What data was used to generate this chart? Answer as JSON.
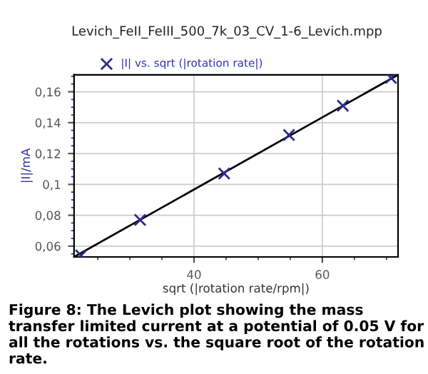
{
  "chart_data": {
    "type": "line",
    "title": "Levich_FeII_FeIII_500_7k_03_CV_1-6_Levich.mpp",
    "xlabel": "sqrt (|rotation rate/rpm|)",
    "ylabel": "|I|/mA",
    "series": [
      {
        "name": "|I| vs. sqrt (|rotation rate|)",
        "type": "scatter",
        "marker": "cross",
        "color": "#2b2b8c",
        "x": [
          22.4,
          31.6,
          44.7,
          54.8,
          63.2,
          70.7
        ],
        "values": [
          0.054,
          0.077,
          0.107,
          0.132,
          0.151,
          0.169
        ]
      },
      {
        "color": "#000000",
        "x": [
          21.3,
          71.8
        ],
        "values": [
          0.053,
          0.171
        ]
      }
    ],
    "xlim": [
      21.3,
      71.8
    ],
    "xticks": [
      40,
      60
    ],
    "ylim": [
      0.053,
      0.171
    ],
    "yticks": [
      {
        "value": 0.06,
        "label": "0,06"
      },
      {
        "value": 0.08,
        "label": "0,08"
      },
      {
        "value": 0.1,
        "label": "0,1"
      },
      {
        "value": 0.12,
        "label": "0,12"
      },
      {
        "value": 0.14,
        "label": "0,14"
      },
      {
        "value": 0.16,
        "label": "0,16"
      }
    ],
    "grid": true,
    "legend": "top left",
    "annotations": [
      "Figure 8: The Levich plot showing the mass transfer limited current at a potential of 0.05 V for all the rotations vs. the square root of the rotation rate."
    ]
  }
}
